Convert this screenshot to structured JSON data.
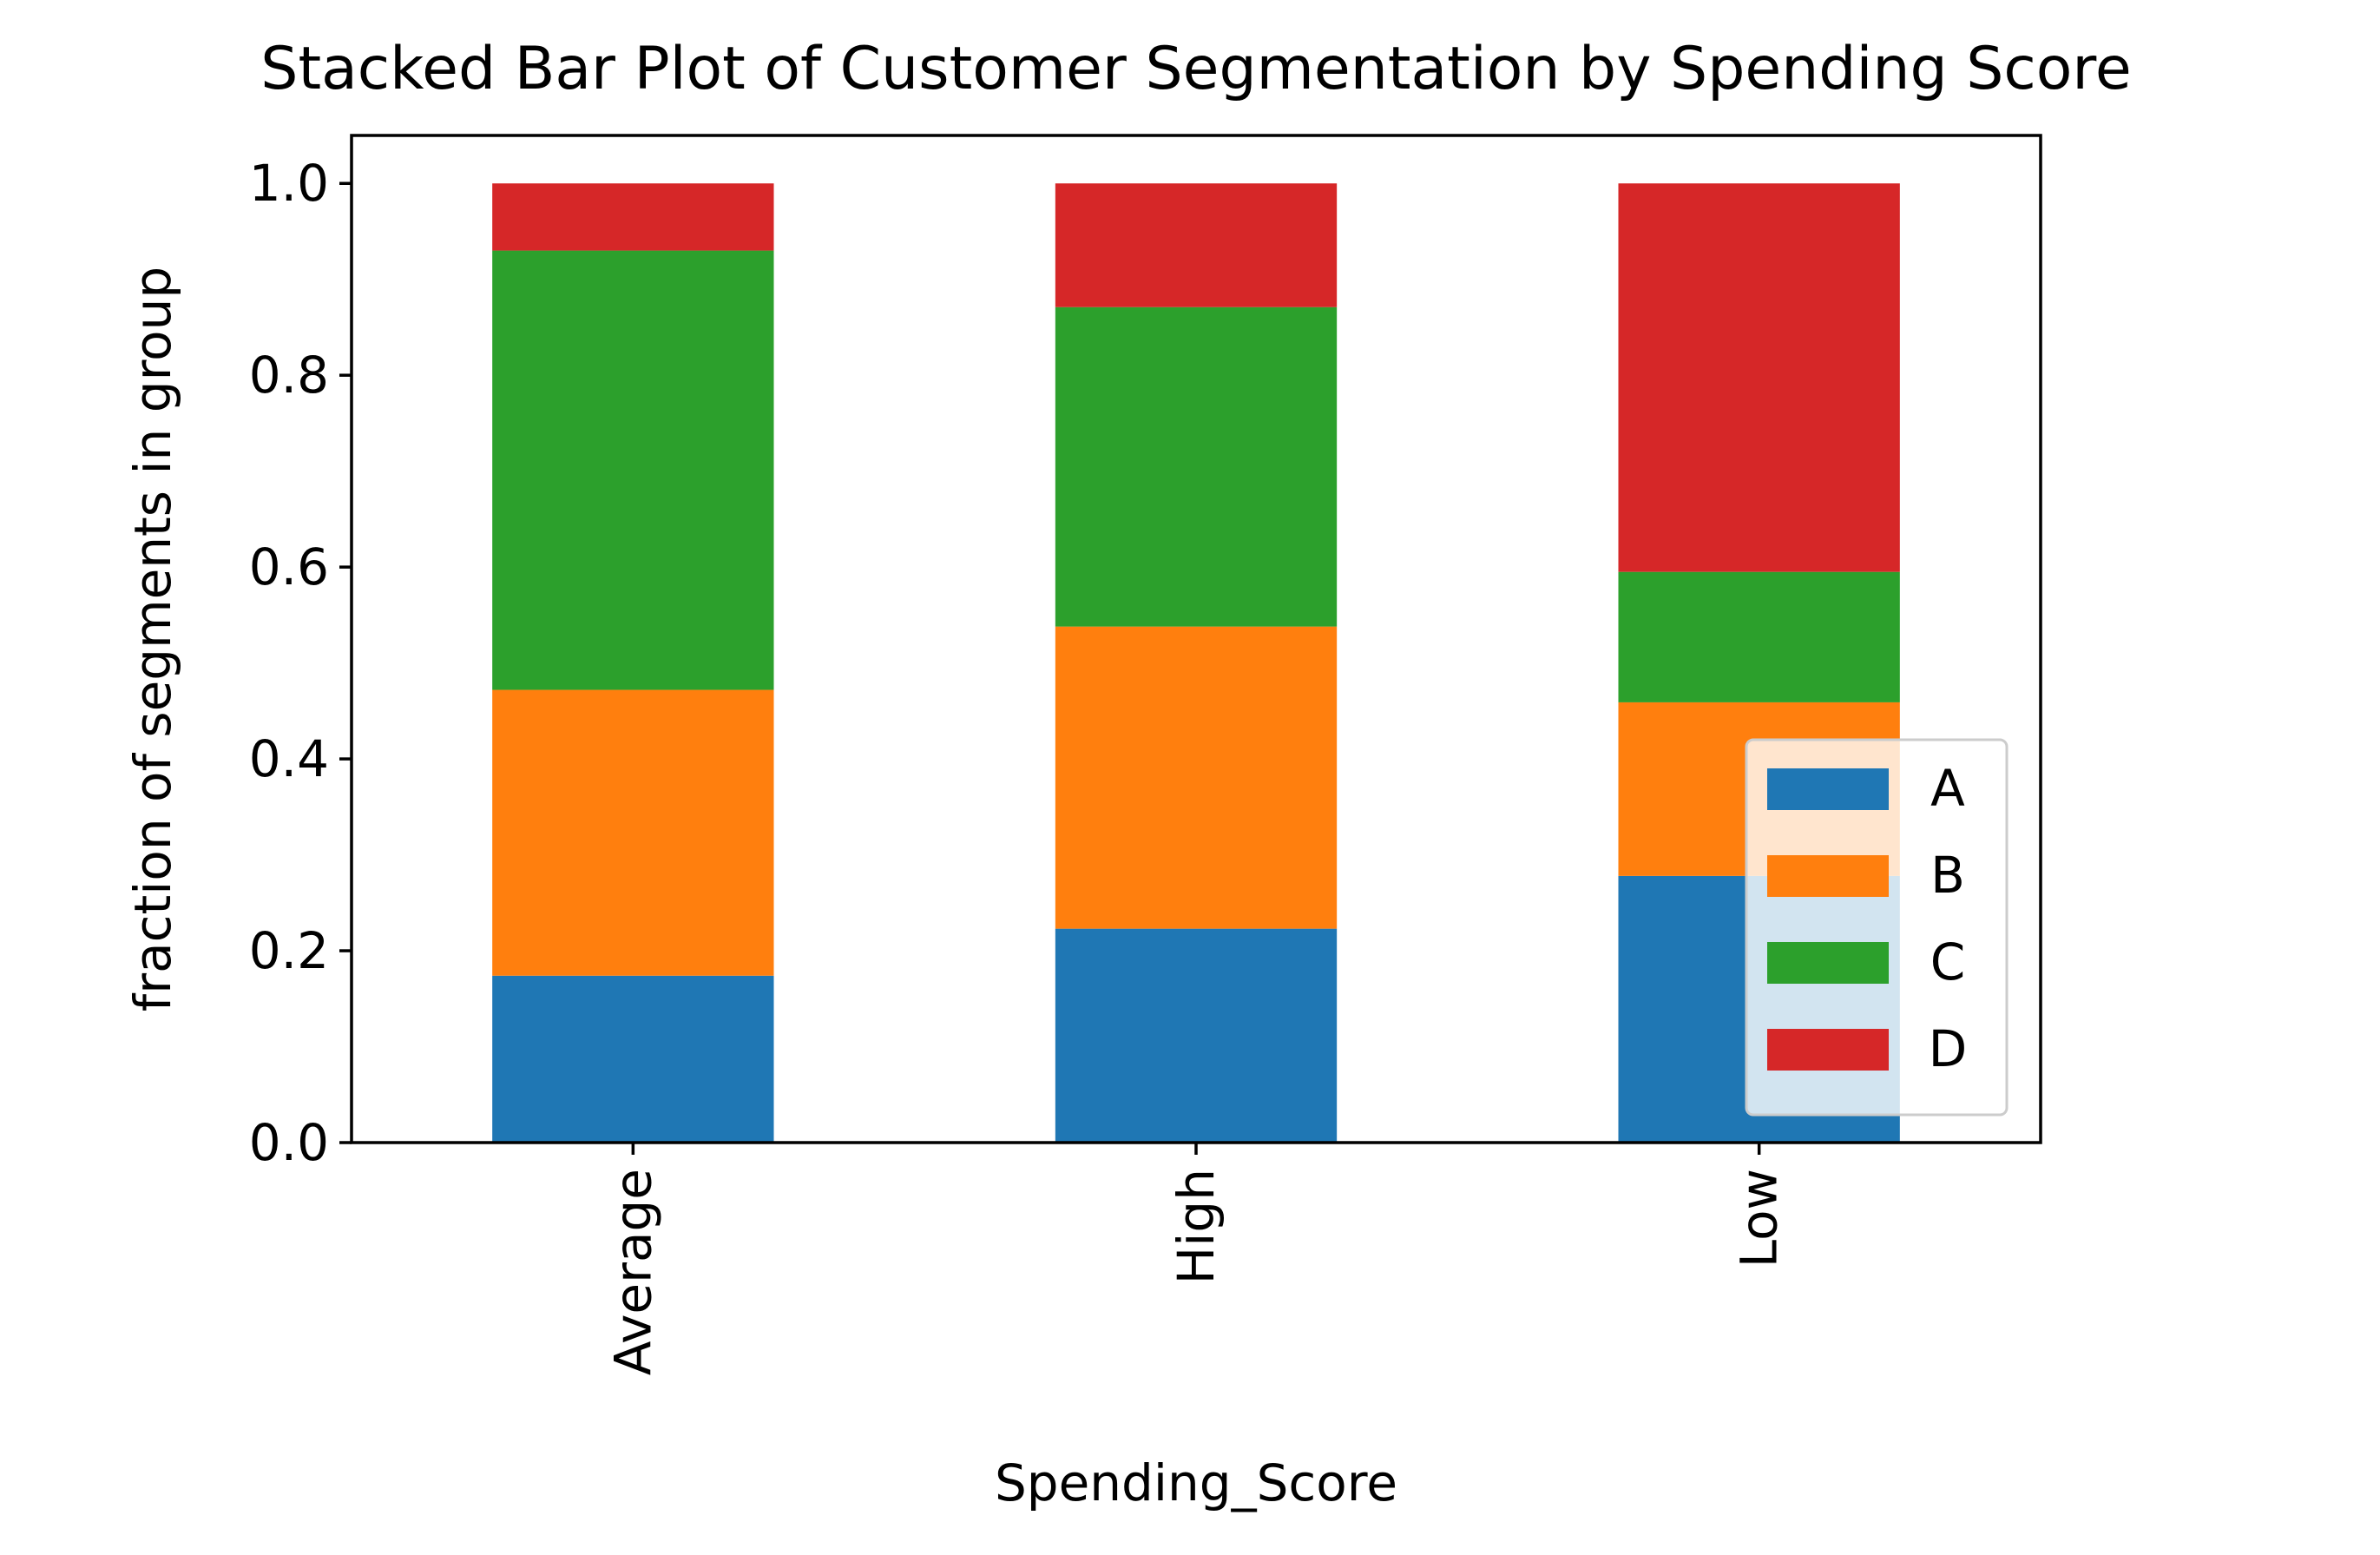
{
  "chart_data": {
    "type": "bar",
    "stacked": true,
    "title": "Stacked Bar Plot of Customer Segmentation by Spending Score",
    "xlabel": "Spending_Score",
    "ylabel": "fraction of segments in group",
    "categories": [
      "Average",
      "High",
      "Low"
    ],
    "series": [
      {
        "name": "A",
        "color": "#1f77b4",
        "values": [
          0.174,
          0.223,
          0.278
        ]
      },
      {
        "name": "B",
        "color": "#ff7f0e",
        "values": [
          0.298,
          0.315,
          0.181
        ]
      },
      {
        "name": "C",
        "color": "#2ca02c",
        "values": [
          0.458,
          0.333,
          0.136
        ]
      },
      {
        "name": "D",
        "color": "#d62728",
        "values": [
          0.07,
          0.129,
          0.405
        ]
      }
    ],
    "ylim": [
      0,
      1.05
    ],
    "yticks": [
      "0.0",
      "0.2",
      "0.4",
      "0.6",
      "0.8",
      "1.0"
    ],
    "ytick_values": [
      0,
      0.2,
      0.4,
      0.6,
      0.8,
      1.0
    ],
    "grid": false,
    "legend_position": "lower-right"
  }
}
